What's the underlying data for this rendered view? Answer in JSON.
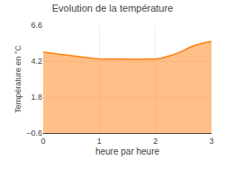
{
  "chart_data": {
    "type": "area",
    "title": "Evolution de la température",
    "xlabel": "heure par heure",
    "ylabel": "Température en °C",
    "x": [
      0,
      0.1,
      0.2,
      0.3,
      0.4,
      0.5,
      0.6,
      0.7,
      0.8,
      0.9,
      1.0,
      1.1,
      1.2,
      1.3,
      1.4,
      1.5,
      1.6,
      1.7,
      1.8,
      1.9,
      2.0,
      2.1,
      2.2,
      2.3,
      2.4,
      2.5,
      2.6,
      2.7,
      2.8,
      2.9,
      3.0
    ],
    "values": [
      4.8,
      4.75,
      4.7,
      4.65,
      4.6,
      4.55,
      4.5,
      4.45,
      4.4,
      4.38,
      4.35,
      4.34,
      4.33,
      4.32,
      4.32,
      4.32,
      4.32,
      4.32,
      4.33,
      4.33,
      4.33,
      4.4,
      4.5,
      4.6,
      4.75,
      4.9,
      5.1,
      5.25,
      5.35,
      5.45,
      5.5
    ],
    "xlim": [
      0,
      3
    ],
    "ylim": [
      -0.6,
      6.6
    ],
    "xticks": [
      0,
      1,
      2,
      3
    ],
    "yticks": [
      -0.6,
      1.8,
      4.2,
      6.6
    ],
    "grid": true
  }
}
